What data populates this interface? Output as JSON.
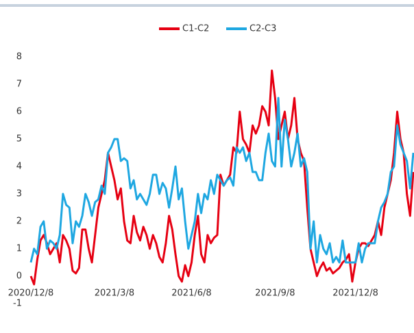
{
  "chart_data": {
    "type": "line",
    "categories": [
      "2020/12/8",
      null,
      null,
      null,
      null,
      null,
      null,
      null,
      null,
      null,
      null,
      null,
      null,
      null,
      null,
      null,
      null,
      null,
      null,
      null,
      null,
      null,
      null,
      null,
      null,
      null,
      "2021/3/8",
      null,
      null,
      null,
      null,
      null,
      null,
      null,
      null,
      null,
      null,
      null,
      null,
      null,
      null,
      null,
      null,
      null,
      null,
      null,
      null,
      null,
      null,
      null,
      "2021/6/8",
      null,
      null,
      null,
      null,
      null,
      null,
      null,
      null,
      null,
      null,
      null,
      null,
      null,
      null,
      null,
      null,
      null,
      null,
      null,
      null,
      null,
      null,
      null,
      null,
      null,
      "2021/9/8",
      null,
      null,
      null,
      null,
      null,
      null,
      null,
      null,
      null,
      null,
      null,
      null,
      null,
      null,
      null,
      null,
      null,
      null,
      null,
      null,
      null,
      null,
      null,
      null,
      "2021/12/8",
      null,
      null,
      null,
      null,
      null,
      null,
      null,
      null,
      null,
      null,
      null,
      null,
      null,
      null,
      null,
      null,
      null,
      null
    ],
    "series": [
      {
        "name": "C1-C2",
        "color": "#e60012",
        "values": [
          0.0,
          -0.3,
          0.6,
          1.3,
          1.5,
          1.2,
          0.8,
          1.0,
          1.2,
          0.5,
          1.5,
          1.3,
          1.0,
          0.2,
          0.1,
          0.3,
          1.7,
          1.7,
          1.0,
          0.5,
          1.5,
          2.5,
          3.0,
          3.5,
          4.5,
          4.0,
          3.5,
          2.8,
          3.2,
          2.0,
          1.3,
          1.2,
          2.2,
          1.6,
          1.3,
          1.8,
          1.5,
          1.0,
          1.5,
          1.2,
          0.7,
          0.5,
          1.2,
          2.2,
          1.7,
          0.8,
          0.0,
          -0.2,
          0.4,
          0.0,
          0.5,
          1.5,
          2.2,
          0.8,
          0.5,
          1.5,
          1.2,
          1.4,
          1.5,
          3.7,
          3.3,
          3.5,
          3.7,
          4.7,
          4.5,
          6.0,
          5.0,
          4.8,
          4.5,
          5.5,
          5.2,
          5.5,
          6.2,
          6.0,
          5.5,
          7.5,
          6.5,
          5.0,
          5.5,
          6.0,
          5.0,
          5.5,
          6.5,
          5.0,
          4.5,
          4.2,
          2.5,
          1.0,
          0.5,
          0.0,
          0.3,
          0.5,
          0.2,
          0.3,
          0.1,
          0.2,
          0.3,
          0.5,
          0.6,
          0.8,
          -0.2,
          0.5,
          1.0,
          1.2,
          1.2,
          1.1,
          1.3,
          1.5,
          2.0,
          1.5,
          2.5,
          3.0,
          3.5,
          4.5,
          6.0,
          5.0,
          4.5,
          3.0,
          2.2,
          3.8
        ]
      },
      {
        "name": "C2-C3",
        "color": "#1ea7e1",
        "values": [
          0.5,
          1.0,
          0.8,
          1.8,
          2.0,
          1.0,
          1.3,
          1.2,
          1.0,
          1.5,
          3.0,
          2.6,
          2.5,
          1.2,
          2.0,
          1.8,
          2.2,
          3.0,
          2.7,
          2.2,
          2.7,
          2.8,
          3.3,
          3.0,
          4.5,
          4.7,
          5.0,
          5.0,
          4.2,
          4.3,
          4.2,
          3.2,
          3.5,
          2.8,
          3.0,
          2.8,
          2.6,
          3.0,
          3.7,
          3.7,
          3.0,
          3.4,
          3.2,
          2.5,
          3.2,
          4.0,
          2.8,
          3.2,
          2.0,
          1.0,
          1.5,
          2.0,
          3.0,
          2.3,
          3.0,
          2.8,
          3.5,
          3.0,
          3.7,
          3.5,
          3.3,
          3.5,
          3.6,
          3.3,
          4.7,
          4.5,
          4.7,
          4.2,
          4.5,
          3.8,
          3.8,
          3.5,
          3.5,
          4.5,
          5.2,
          4.2,
          4.0,
          6.5,
          4.0,
          5.7,
          5.0,
          4.0,
          4.5,
          5.2,
          4.0,
          4.3,
          3.8,
          1.0,
          2.0,
          0.5,
          1.5,
          1.0,
          0.8,
          1.2,
          0.5,
          0.7,
          0.5,
          1.3,
          0.5,
          0.5,
          0.5,
          0.5,
          1.2,
          0.5,
          1.0,
          1.2,
          1.2,
          1.2,
          2.0,
          2.5,
          2.7,
          3.0,
          3.8,
          4.0,
          5.5,
          4.8,
          4.5,
          4.2,
          3.2,
          4.5
        ]
      }
    ],
    "ylim": [
      -1,
      8
    ],
    "yticks": [
      -1,
      0,
      1,
      2,
      3,
      4,
      5,
      6,
      7,
      8
    ],
    "grid": false,
    "legend": "top"
  }
}
